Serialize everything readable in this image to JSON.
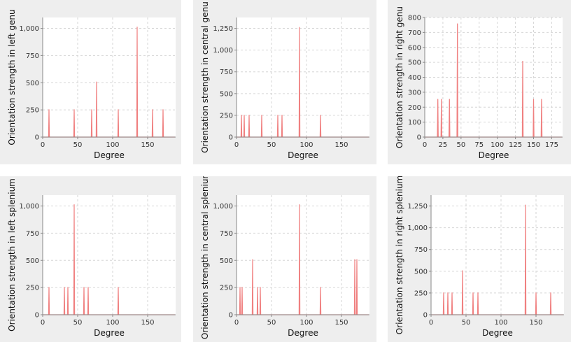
{
  "chart_data": [
    {
      "type": "line",
      "ylabel": "Orientation strength in left genu",
      "xlabel": "Degree",
      "xlim": [
        0,
        190
      ],
      "ylim": [
        0,
        1100
      ],
      "xticks": [
        0,
        50,
        100,
        150
      ],
      "xtick_labels": [
        "0",
        "50",
        "100",
        "150"
      ],
      "yticks": [
        0,
        250,
        500,
        750,
        1000
      ],
      "ytick_labels": [
        "0",
        "250",
        "500",
        "750",
        "1,000"
      ],
      "grid": true,
      "series_color": "#f08080",
      "peaks": [
        {
          "x": 9,
          "y": 255
        },
        {
          "x": 45,
          "y": 255
        },
        {
          "x": 70,
          "y": 255
        },
        {
          "x": 77,
          "y": 510
        },
        {
          "x": 108,
          "y": 255
        },
        {
          "x": 135,
          "y": 1015
        },
        {
          "x": 157,
          "y": 255
        },
        {
          "x": 172,
          "y": 255
        }
      ]
    },
    {
      "type": "line",
      "ylabel": "Orientation strength in central genu",
      "xlabel": "Degree",
      "xlim": [
        0,
        190
      ],
      "ylim": [
        0,
        1375
      ],
      "xticks": [
        0,
        50,
        100,
        150
      ],
      "xtick_labels": [
        "0",
        "50",
        "100",
        "150"
      ],
      "yticks": [
        0,
        250,
        500,
        750,
        1000,
        1250
      ],
      "ytick_labels": [
        "0",
        "250",
        "500",
        "750",
        "1,000",
        "1,250"
      ],
      "grid": true,
      "series_color": "#f08080",
      "peaks": [
        {
          "x": 7,
          "y": 255
        },
        {
          "x": 11,
          "y": 255
        },
        {
          "x": 18,
          "y": 255
        },
        {
          "x": 36,
          "y": 255
        },
        {
          "x": 59,
          "y": 255
        },
        {
          "x": 65,
          "y": 255
        },
        {
          "x": 90,
          "y": 1265
        },
        {
          "x": 120,
          "y": 255
        }
      ]
    },
    {
      "type": "line",
      "ylabel": "Orientation strength in right genu",
      "xlabel": "Degree",
      "xlim": [
        0,
        190
      ],
      "ylim": [
        0,
        800
      ],
      "xticks": [
        0,
        25,
        50,
        75,
        100,
        125,
        150,
        175
      ],
      "xtick_labels": [
        "0",
        "25",
        "50",
        "75",
        "100",
        "125",
        "150",
        "175"
      ],
      "yticks": [
        0,
        100,
        200,
        300,
        400,
        500,
        600,
        700,
        800
      ],
      "ytick_labels": [
        "0",
        "100",
        "200",
        "300",
        "400",
        "500",
        "600",
        "700",
        "800"
      ],
      "grid": true,
      "series_color": "#f08080",
      "peaks": [
        {
          "x": 18,
          "y": 255
        },
        {
          "x": 23,
          "y": 255
        },
        {
          "x": 34,
          "y": 255
        },
        {
          "x": 45,
          "y": 760
        },
        {
          "x": 135,
          "y": 510
        },
        {
          "x": 150,
          "y": 255
        },
        {
          "x": 161,
          "y": 255
        }
      ]
    },
    {
      "type": "line",
      "ylabel": "Orientation strength in left splenium",
      "xlabel": "Degree",
      "xlim": [
        0,
        190
      ],
      "ylim": [
        0,
        1100
      ],
      "xticks": [
        0,
        50,
        100,
        150
      ],
      "xtick_labels": [
        "0",
        "50",
        "100",
        "150"
      ],
      "yticks": [
        0,
        250,
        500,
        750,
        1000
      ],
      "ytick_labels": [
        "0",
        "250",
        "500",
        "750",
        "1,000"
      ],
      "grid": true,
      "series_color": "#f08080",
      "peaks": [
        {
          "x": 9,
          "y": 255
        },
        {
          "x": 31,
          "y": 255
        },
        {
          "x": 36,
          "y": 255
        },
        {
          "x": 45,
          "y": 1015
        },
        {
          "x": 59,
          "y": 255
        },
        {
          "x": 65,
          "y": 255
        },
        {
          "x": 108,
          "y": 255
        }
      ]
    },
    {
      "type": "line",
      "ylabel": "Orientation strength in central splenium",
      "xlabel": "Degree",
      "xlim": [
        0,
        190
      ],
      "ylim": [
        0,
        1100
      ],
      "xticks": [
        0,
        50,
        100,
        150
      ],
      "xtick_labels": [
        "0",
        "50",
        "100",
        "150"
      ],
      "yticks": [
        0,
        250,
        500,
        750,
        1000
      ],
      "ytick_labels": [
        "0",
        "250",
        "500",
        "750",
        "1,000"
      ],
      "grid": true,
      "series_color": "#f08080",
      "peaks": [
        {
          "x": 5,
          "y": 255
        },
        {
          "x": 8,
          "y": 255
        },
        {
          "x": 23,
          "y": 510
        },
        {
          "x": 30,
          "y": 255
        },
        {
          "x": 34,
          "y": 255
        },
        {
          "x": 90,
          "y": 1015
        },
        {
          "x": 120,
          "y": 255
        },
        {
          "x": 169,
          "y": 510
        },
        {
          "x": 172,
          "y": 510
        }
      ]
    },
    {
      "type": "line",
      "ylabel": "Orientation strength in right splenium",
      "xlabel": "Degree",
      "xlim": [
        0,
        190
      ],
      "ylim": [
        0,
        1375
      ],
      "xticks": [
        0,
        50,
        100,
        150
      ],
      "xtick_labels": [
        "0",
        "50",
        "100",
        "150"
      ],
      "yticks": [
        0,
        250,
        500,
        750,
        1000,
        1250
      ],
      "ytick_labels": [
        "0",
        "250",
        "500",
        "750",
        "1,000",
        "1,250"
      ],
      "grid": true,
      "series_color": "#f08080",
      "peaks": [
        {
          "x": 18,
          "y": 255
        },
        {
          "x": 24,
          "y": 255
        },
        {
          "x": 30,
          "y": 255
        },
        {
          "x": 45,
          "y": 510
        },
        {
          "x": 60,
          "y": 255
        },
        {
          "x": 67,
          "y": 255
        },
        {
          "x": 135,
          "y": 1265
        },
        {
          "x": 150,
          "y": 255
        },
        {
          "x": 171,
          "y": 255
        }
      ]
    }
  ]
}
